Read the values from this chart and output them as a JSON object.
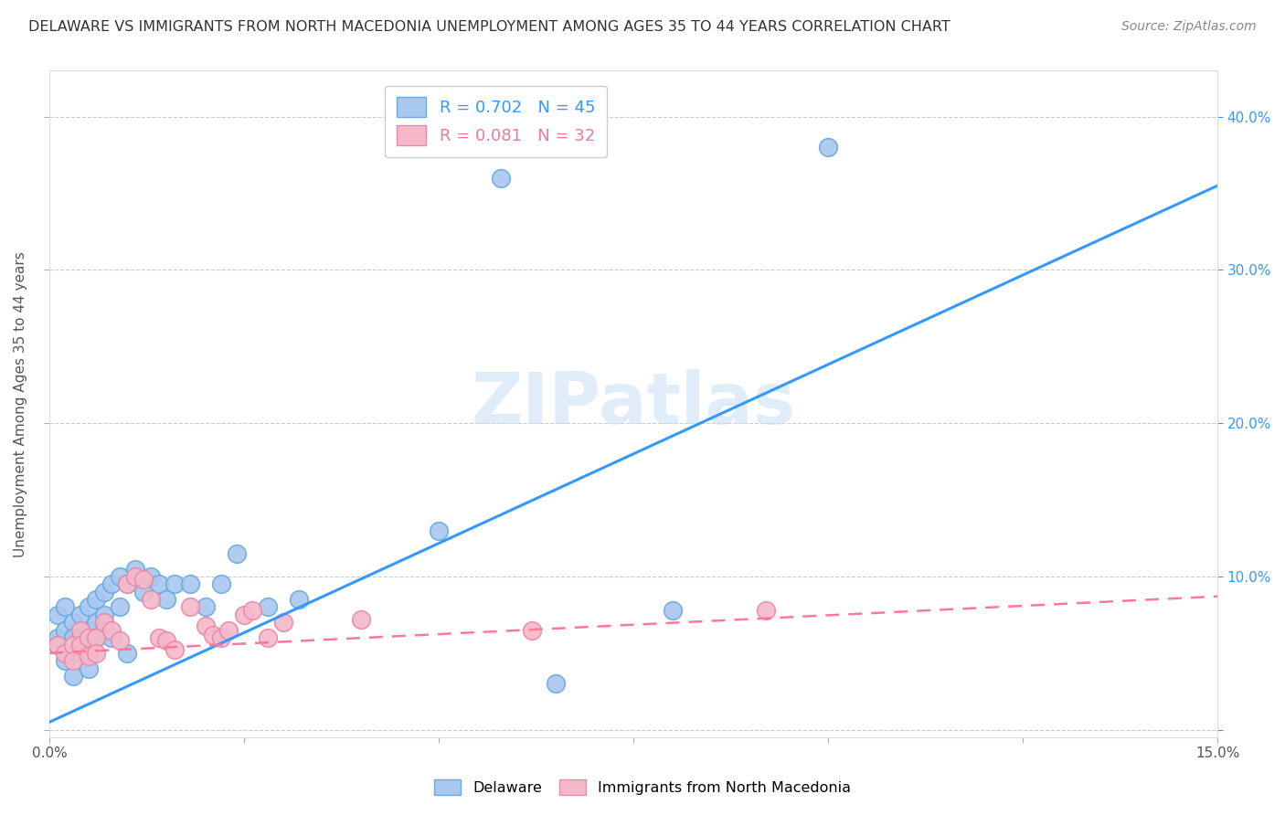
{
  "title": "DELAWARE VS IMMIGRANTS FROM NORTH MACEDONIA UNEMPLOYMENT AMONG AGES 35 TO 44 YEARS CORRELATION CHART",
  "source": "Source: ZipAtlas.com",
  "ylabel": "Unemployment Among Ages 35 to 44 years",
  "xlim": [
    0.0,
    0.15
  ],
  "ylim": [
    -0.005,
    0.43
  ],
  "xtick_positions": [
    0.0,
    0.025,
    0.05,
    0.075,
    0.1,
    0.125,
    0.15
  ],
  "xtick_labels": [
    "0.0%",
    "",
    "",
    "",
    "",
    "",
    "15.0%"
  ],
  "ytick_positions": [
    0.0,
    0.1,
    0.2,
    0.3,
    0.4
  ],
  "ytick_labels_left": [
    "",
    "",
    "",
    "",
    ""
  ],
  "ytick_labels_right": [
    "",
    "10.0%",
    "20.0%",
    "30.0%",
    "40.0%"
  ],
  "watermark": "ZIPatlas",
  "delaware_color": "#a8c8f0",
  "delaware_edge": "#6aaade",
  "macedonia_color": "#f5b8c8",
  "macedonia_edge": "#e88aaa",
  "line_delaware_color": "#3399ff",
  "line_macedonia_color": "#ff7799",
  "legend_R_delaware": "R = 0.702",
  "legend_N_delaware": "N = 45",
  "legend_R_macedonia": "R = 0.081",
  "legend_N_macedonia": "N = 32",
  "delaware_line_x0": 0.0,
  "delaware_line_y0": 0.005,
  "delaware_line_x1": 0.15,
  "delaware_line_y1": 0.355,
  "macedonia_line_x0": 0.0,
  "macedonia_line_y0": 0.05,
  "macedonia_line_x1": 0.15,
  "macedonia_line_y1": 0.087,
  "delaware_x": [
    0.001,
    0.001,
    0.001,
    0.002,
    0.002,
    0.002,
    0.003,
    0.003,
    0.003,
    0.004,
    0.004,
    0.004,
    0.005,
    0.005,
    0.005,
    0.005,
    0.006,
    0.006,
    0.006,
    0.007,
    0.007,
    0.007,
    0.008,
    0.008,
    0.009,
    0.009,
    0.01,
    0.01,
    0.011,
    0.012,
    0.013,
    0.014,
    0.015,
    0.016,
    0.018,
    0.02,
    0.022,
    0.024,
    0.028,
    0.032,
    0.05,
    0.058,
    0.065,
    0.08,
    0.1
  ],
  "delaware_y": [
    0.06,
    0.075,
    0.055,
    0.065,
    0.08,
    0.045,
    0.07,
    0.06,
    0.035,
    0.075,
    0.06,
    0.05,
    0.08,
    0.065,
    0.055,
    0.04,
    0.085,
    0.07,
    0.06,
    0.09,
    0.075,
    0.065,
    0.095,
    0.06,
    0.1,
    0.08,
    0.095,
    0.05,
    0.105,
    0.09,
    0.1,
    0.095,
    0.085,
    0.095,
    0.095,
    0.08,
    0.095,
    0.115,
    0.08,
    0.085,
    0.13,
    0.36,
    0.03,
    0.078,
    0.38
  ],
  "macedonia_x": [
    0.001,
    0.002,
    0.003,
    0.003,
    0.004,
    0.004,
    0.005,
    0.005,
    0.006,
    0.006,
    0.007,
    0.008,
    0.009,
    0.01,
    0.011,
    0.012,
    0.013,
    0.014,
    0.015,
    0.016,
    0.018,
    0.02,
    0.021,
    0.022,
    0.023,
    0.025,
    0.026,
    0.028,
    0.03,
    0.04,
    0.062,
    0.092
  ],
  "macedonia_y": [
    0.055,
    0.05,
    0.055,
    0.045,
    0.065,
    0.055,
    0.06,
    0.048,
    0.06,
    0.05,
    0.07,
    0.065,
    0.058,
    0.095,
    0.1,
    0.098,
    0.085,
    0.06,
    0.058,
    0.052,
    0.08,
    0.068,
    0.062,
    0.06,
    0.065,
    0.075,
    0.078,
    0.06,
    0.07,
    0.072,
    0.065,
    0.078
  ],
  "background_color": "#ffffff",
  "grid_color": "#cccccc",
  "title_fontsize": 11.5,
  "axis_label_color": "#555555",
  "right_tick_color": "#3399ff"
}
